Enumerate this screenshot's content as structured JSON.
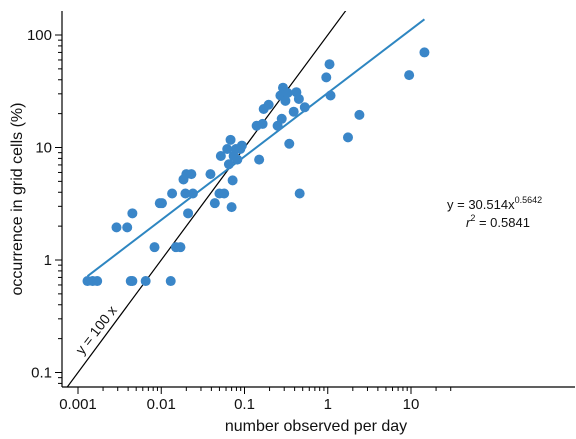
{
  "chart_data": {
    "type": "scatter",
    "xlabel": "number observed per day",
    "ylabel": "occurrence in grid cells (%)",
    "x_scale": "log",
    "y_scale": "log",
    "xlim": [
      0.001,
      30
    ],
    "ylim": [
      0.06,
      200
    ],
    "x_ticks": [
      {
        "value": 0.001,
        "label": "0.001"
      },
      {
        "value": 0.01,
        "label": "0.01"
      },
      {
        "value": 0.1,
        "label": "0.1"
      },
      {
        "value": 1,
        "label": "1"
      },
      {
        "value": 10,
        "label": "10"
      }
    ],
    "y_ticks": [
      {
        "value": 0.1,
        "label": "0.1"
      },
      {
        "value": 1,
        "label": "1"
      },
      {
        "value": 10,
        "label": "10"
      },
      {
        "value": 100,
        "label": "100"
      }
    ],
    "grid": false,
    "colors": {
      "points": "#3a86c8",
      "fit_line": "#2e86c1",
      "reference_line": "#000000",
      "axes": "#000000"
    },
    "points": [
      {
        "x": 0.0013,
        "y": 0.65
      },
      {
        "x": 0.0015,
        "y": 0.65
      },
      {
        "x": 0.0017,
        "y": 0.65
      },
      {
        "x": 0.0029,
        "y": 1.95
      },
      {
        "x": 0.0039,
        "y": 1.95
      },
      {
        "x": 0.0043,
        "y": 0.65
      },
      {
        "x": 0.0045,
        "y": 0.65
      },
      {
        "x": 0.0045,
        "y": 2.6
      },
      {
        "x": 0.0065,
        "y": 0.65
      },
      {
        "x": 0.0083,
        "y": 1.3
      },
      {
        "x": 0.0096,
        "y": 3.2
      },
      {
        "x": 0.0102,
        "y": 3.2
      },
      {
        "x": 0.013,
        "y": 0.65
      },
      {
        "x": 0.0135,
        "y": 3.9
      },
      {
        "x": 0.015,
        "y": 1.3
      },
      {
        "x": 0.017,
        "y": 1.3
      },
      {
        "x": 0.0185,
        "y": 5.2
      },
      {
        "x": 0.0195,
        "y": 3.9
      },
      {
        "x": 0.02,
        "y": 5.8
      },
      {
        "x": 0.021,
        "y": 2.6
      },
      {
        "x": 0.023,
        "y": 5.8
      },
      {
        "x": 0.024,
        "y": 3.9
      },
      {
        "x": 0.039,
        "y": 5.8
      },
      {
        "x": 0.044,
        "y": 3.2
      },
      {
        "x": 0.05,
        "y": 3.9
      },
      {
        "x": 0.052,
        "y": 8.4
      },
      {
        "x": 0.057,
        "y": 3.9
      },
      {
        "x": 0.062,
        "y": 9.7
      },
      {
        "x": 0.065,
        "y": 7.1
      },
      {
        "x": 0.068,
        "y": 11.7
      },
      {
        "x": 0.07,
        "y": 2.95
      },
      {
        "x": 0.072,
        "y": 5.1
      },
      {
        "x": 0.074,
        "y": 8.4
      },
      {
        "x": 0.079,
        "y": 9.7
      },
      {
        "x": 0.082,
        "y": 7.8
      },
      {
        "x": 0.089,
        "y": 9.7
      },
      {
        "x": 0.093,
        "y": 10.4
      },
      {
        "x": 0.14,
        "y": 15.6
      },
      {
        "x": 0.15,
        "y": 7.8
      },
      {
        "x": 0.165,
        "y": 16.2
      },
      {
        "x": 0.17,
        "y": 22
      },
      {
        "x": 0.195,
        "y": 24
      },
      {
        "x": 0.25,
        "y": 15.6
      },
      {
        "x": 0.27,
        "y": 29
      },
      {
        "x": 0.28,
        "y": 18
      },
      {
        "x": 0.29,
        "y": 34
      },
      {
        "x": 0.31,
        "y": 26
      },
      {
        "x": 0.33,
        "y": 30.5
      },
      {
        "x": 0.345,
        "y": 10.8
      },
      {
        "x": 0.39,
        "y": 20.8
      },
      {
        "x": 0.42,
        "y": 31
      },
      {
        "x": 0.45,
        "y": 27
      },
      {
        "x": 0.46,
        "y": 3.9
      },
      {
        "x": 0.53,
        "y": 22.8
      },
      {
        "x": 0.96,
        "y": 42
      },
      {
        "x": 1.05,
        "y": 55
      },
      {
        "x": 1.08,
        "y": 29
      },
      {
        "x": 1.75,
        "y": 12.3
      },
      {
        "x": 2.4,
        "y": 19.5
      },
      {
        "x": 9.5,
        "y": 44
      },
      {
        "x": 14.5,
        "y": 70
      }
    ],
    "fit": {
      "coefficient": 30.514,
      "exponent": 0.5642,
      "x_range": [
        0.0013,
        14.5
      ]
    },
    "reference_line": {
      "label": "y = 100 x",
      "coefficient": 100
    },
    "annotations": {
      "equation_main": "y = 30.514x",
      "equation_exponent": "0.5642",
      "r2_r": "r",
      "r2_sup": "2",
      "r2_value": " = 0.5841"
    }
  }
}
